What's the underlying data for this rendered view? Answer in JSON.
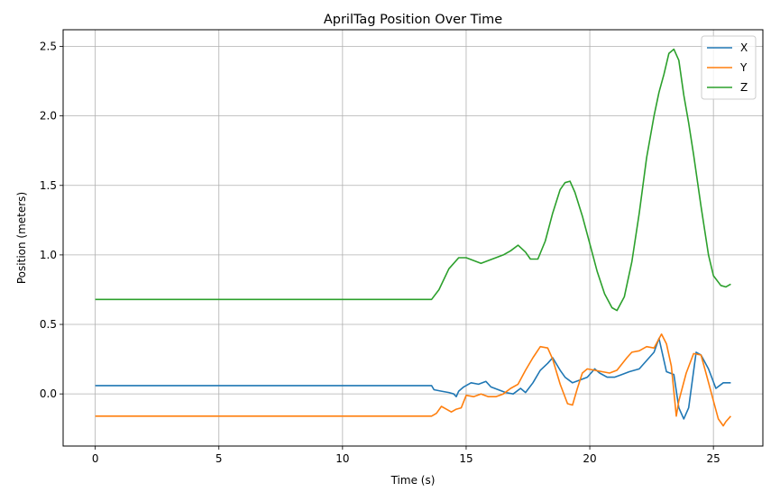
{
  "chart_data": {
    "type": "line",
    "title": "AprilTag Position Over Time",
    "xlabel": "Time (s)",
    "ylabel": "Position (meters)",
    "xlim": [
      -1.3,
      27.0
    ],
    "ylim": [
      -0.375,
      2.62
    ],
    "xticks": [
      0,
      5,
      10,
      15,
      20,
      25
    ],
    "yticks": [
      0.0,
      0.5,
      1.0,
      1.5,
      2.0,
      2.5
    ],
    "xtick_labels": [
      "0",
      "5",
      "10",
      "15",
      "20",
      "25"
    ],
    "ytick_labels": [
      "0.0",
      "0.5",
      "1.0",
      "1.5",
      "2.0",
      "2.5"
    ],
    "grid": true,
    "legend_position": "upper-right",
    "series": [
      {
        "name": "X",
        "color": "#1f77b4",
        "points": [
          [
            0,
            0.06
          ],
          [
            13.6,
            0.06
          ],
          [
            13.7,
            0.03
          ],
          [
            14.0,
            0.02
          ],
          [
            14.3,
            0.01
          ],
          [
            14.5,
            0.0
          ],
          [
            14.6,
            -0.02
          ],
          [
            14.7,
            0.02
          ],
          [
            14.9,
            0.05
          ],
          [
            15.2,
            0.08
          ],
          [
            15.5,
            0.07
          ],
          [
            15.8,
            0.09
          ],
          [
            16.0,
            0.05
          ],
          [
            16.3,
            0.03
          ],
          [
            16.6,
            0.01
          ],
          [
            16.9,
            0.0
          ],
          [
            17.2,
            0.04
          ],
          [
            17.4,
            0.01
          ],
          [
            17.7,
            0.08
          ],
          [
            18.0,
            0.17
          ],
          [
            18.3,
            0.22
          ],
          [
            18.5,
            0.26
          ],
          [
            18.8,
            0.17
          ],
          [
            19.0,
            0.12
          ],
          [
            19.3,
            0.08
          ],
          [
            19.6,
            0.1
          ],
          [
            19.9,
            0.12
          ],
          [
            20.2,
            0.18
          ],
          [
            20.4,
            0.15
          ],
          [
            20.7,
            0.12
          ],
          [
            21.0,
            0.12
          ],
          [
            21.3,
            0.14
          ],
          [
            21.6,
            0.16
          ],
          [
            22.0,
            0.18
          ],
          [
            22.3,
            0.24
          ],
          [
            22.6,
            0.3
          ],
          [
            22.8,
            0.4
          ],
          [
            23.1,
            0.16
          ],
          [
            23.4,
            0.14
          ],
          [
            23.6,
            -0.1
          ],
          [
            23.8,
            -0.18
          ],
          [
            24.0,
            -0.1
          ],
          [
            24.3,
            0.3
          ],
          [
            24.5,
            0.28
          ],
          [
            24.8,
            0.18
          ],
          [
            25.1,
            0.04
          ],
          [
            25.4,
            0.08
          ],
          [
            25.7,
            0.08
          ]
        ]
      },
      {
        "name": "Y",
        "color": "#ff7f0e",
        "points": [
          [
            0,
            -0.16
          ],
          [
            13.6,
            -0.16
          ],
          [
            13.8,
            -0.14
          ],
          [
            14.0,
            -0.09
          ],
          [
            14.2,
            -0.11
          ],
          [
            14.4,
            -0.13
          ],
          [
            14.6,
            -0.11
          ],
          [
            14.8,
            -0.1
          ],
          [
            15.0,
            -0.01
          ],
          [
            15.3,
            -0.02
          ],
          [
            15.6,
            0.0
          ],
          [
            15.9,
            -0.02
          ],
          [
            16.2,
            -0.02
          ],
          [
            16.5,
            0.0
          ],
          [
            16.8,
            0.04
          ],
          [
            17.1,
            0.07
          ],
          [
            17.4,
            0.17
          ],
          [
            17.7,
            0.26
          ],
          [
            18.0,
            0.34
          ],
          [
            18.3,
            0.33
          ],
          [
            18.5,
            0.25
          ],
          [
            18.8,
            0.07
          ],
          [
            19.1,
            -0.07
          ],
          [
            19.3,
            -0.08
          ],
          [
            19.5,
            0.04
          ],
          [
            19.7,
            0.15
          ],
          [
            19.9,
            0.18
          ],
          [
            20.2,
            0.17
          ],
          [
            20.5,
            0.16
          ],
          [
            20.8,
            0.15
          ],
          [
            21.1,
            0.17
          ],
          [
            21.5,
            0.26
          ],
          [
            21.7,
            0.3
          ],
          [
            22.0,
            0.31
          ],
          [
            22.3,
            0.34
          ],
          [
            22.6,
            0.33
          ],
          [
            22.9,
            0.43
          ],
          [
            23.1,
            0.36
          ],
          [
            23.3,
            0.2
          ],
          [
            23.5,
            -0.16
          ],
          [
            23.6,
            -0.05
          ],
          [
            23.9,
            0.15
          ],
          [
            24.2,
            0.29
          ],
          [
            24.5,
            0.28
          ],
          [
            24.7,
            0.15
          ],
          [
            25.0,
            -0.05
          ],
          [
            25.2,
            -0.18
          ],
          [
            25.4,
            -0.23
          ],
          [
            25.5,
            -0.2
          ],
          [
            25.7,
            -0.16
          ]
        ]
      },
      {
        "name": "Z",
        "color": "#2ca02c",
        "points": [
          [
            0,
            0.68
          ],
          [
            13.6,
            0.68
          ],
          [
            13.9,
            0.75
          ],
          [
            14.3,
            0.9
          ],
          [
            14.7,
            0.98
          ],
          [
            15.0,
            0.98
          ],
          [
            15.3,
            0.96
          ],
          [
            15.6,
            0.94
          ],
          [
            15.9,
            0.96
          ],
          [
            16.2,
            0.98
          ],
          [
            16.5,
            1.0
          ],
          [
            16.8,
            1.03
          ],
          [
            17.1,
            1.07
          ],
          [
            17.4,
            1.02
          ],
          [
            17.6,
            0.97
          ],
          [
            17.9,
            0.97
          ],
          [
            18.2,
            1.1
          ],
          [
            18.5,
            1.3
          ],
          [
            18.8,
            1.47
          ],
          [
            19.0,
            1.52
          ],
          [
            19.2,
            1.53
          ],
          [
            19.4,
            1.45
          ],
          [
            19.7,
            1.28
          ],
          [
            20.0,
            1.08
          ],
          [
            20.3,
            0.88
          ],
          [
            20.6,
            0.72
          ],
          [
            20.9,
            0.62
          ],
          [
            21.1,
            0.6
          ],
          [
            21.4,
            0.7
          ],
          [
            21.7,
            0.95
          ],
          [
            22.0,
            1.3
          ],
          [
            22.3,
            1.7
          ],
          [
            22.6,
            2.0
          ],
          [
            22.8,
            2.17
          ],
          [
            23.0,
            2.3
          ],
          [
            23.2,
            2.45
          ],
          [
            23.4,
            2.48
          ],
          [
            23.6,
            2.4
          ],
          [
            23.8,
            2.15
          ],
          [
            24.0,
            1.95
          ],
          [
            24.2,
            1.72
          ],
          [
            24.5,
            1.35
          ],
          [
            24.8,
            1.0
          ],
          [
            25.0,
            0.85
          ],
          [
            25.3,
            0.78
          ],
          [
            25.5,
            0.77
          ],
          [
            25.7,
            0.79
          ]
        ]
      }
    ]
  }
}
